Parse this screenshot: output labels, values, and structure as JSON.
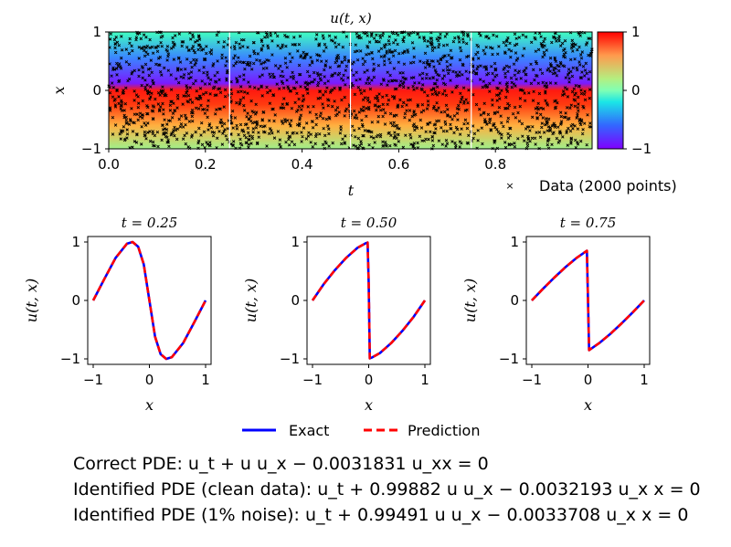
{
  "chart_data": [
    {
      "type": "heatmap",
      "title": "u(t, x)",
      "xlabel": "t",
      "ylabel": "x",
      "xlim": [
        0.0,
        1.0
      ],
      "ylim": [
        -1,
        1
      ],
      "xticks": [
        "0.0",
        "0.2",
        "0.4",
        "0.6",
        "0.8"
      ],
      "yticks": [
        "1",
        "0",
        "−1"
      ],
      "colorbar": {
        "ticks": [
          "1",
          "0",
          "−1"
        ],
        "range": [
          -1,
          1
        ],
        "colormap": "rainbow"
      },
      "slice_lines_t": [
        0.25,
        0.5,
        0.75
      ],
      "scatter_legend": "Data (2000 points)",
      "scatter_count": 2000
    },
    {
      "type": "line",
      "title": "t = 0.25",
      "xlabel": "x",
      "ylabel": "u(t, x)",
      "xlim": [
        -1,
        1
      ],
      "ylim": [
        -1,
        1
      ],
      "xticks": [
        "−1",
        "0",
        "1"
      ],
      "yticks": [
        "1",
        "0",
        "−1"
      ],
      "series": [
        {
          "name": "Exact",
          "x": [
            -1,
            -0.8,
            -0.6,
            -0.4,
            -0.3,
            -0.2,
            -0.1,
            0,
            0.1,
            0.2,
            0.3,
            0.4,
            0.6,
            0.8,
            1
          ],
          "y": [
            0,
            0.37,
            0.73,
            0.97,
            1.0,
            0.92,
            0.62,
            0.0,
            -0.62,
            -0.92,
            -1.0,
            -0.97,
            -0.73,
            -0.37,
            0
          ]
        },
        {
          "name": "Prediction",
          "x": [
            -1,
            -0.8,
            -0.6,
            -0.4,
            -0.3,
            -0.2,
            -0.1,
            0,
            0.1,
            0.2,
            0.3,
            0.4,
            0.6,
            0.8,
            1
          ],
          "y": [
            0,
            0.37,
            0.73,
            0.97,
            1.0,
            0.92,
            0.62,
            0.0,
            -0.62,
            -0.92,
            -1.0,
            -0.97,
            -0.73,
            -0.37,
            0
          ]
        }
      ]
    },
    {
      "type": "line",
      "title": "t = 0.50",
      "xlabel": "x",
      "ylabel": "u(t, x)",
      "xlim": [
        -1,
        1
      ],
      "ylim": [
        -1,
        1
      ],
      "xticks": [
        "−1",
        "0",
        "1"
      ],
      "yticks": [
        "1",
        "0",
        "−1"
      ],
      "series": [
        {
          "name": "Exact",
          "x": [
            -1,
            -0.8,
            -0.6,
            -0.4,
            -0.2,
            -0.05,
            -0.02,
            0.0,
            0.02,
            0.05,
            0.2,
            0.4,
            0.6,
            0.8,
            1
          ],
          "y": [
            0,
            0.28,
            0.52,
            0.73,
            0.9,
            0.98,
            0.99,
            0.3,
            -0.99,
            -0.98,
            -0.9,
            -0.73,
            -0.52,
            -0.28,
            0
          ]
        },
        {
          "name": "Prediction",
          "x": [
            -1,
            -0.8,
            -0.6,
            -0.4,
            -0.2,
            -0.05,
            -0.02,
            0.0,
            0.02,
            0.05,
            0.2,
            0.4,
            0.6,
            0.8,
            1
          ],
          "y": [
            0,
            0.28,
            0.52,
            0.73,
            0.9,
            0.98,
            0.99,
            0.3,
            -0.99,
            -0.98,
            -0.9,
            -0.73,
            -0.52,
            -0.28,
            0
          ]
        }
      ]
    },
    {
      "type": "line",
      "title": "t = 0.75",
      "xlabel": "x",
      "ylabel": "u(t, x)",
      "xlim": [
        -1,
        1
      ],
      "ylim": [
        -1,
        1
      ],
      "xticks": [
        "−1",
        "0",
        "1"
      ],
      "yticks": [
        "1",
        "0",
        "−1"
      ],
      "series": [
        {
          "name": "Exact",
          "x": [
            -1,
            -0.8,
            -0.6,
            -0.4,
            -0.2,
            -0.02,
            0.0,
            0.02,
            0.2,
            0.4,
            0.6,
            0.8,
            1
          ],
          "y": [
            0,
            0.2,
            0.39,
            0.57,
            0.73,
            0.85,
            0.0,
            -0.85,
            -0.73,
            -0.57,
            -0.39,
            -0.2,
            0
          ]
        },
        {
          "name": "Prediction",
          "x": [
            -1,
            -0.8,
            -0.6,
            -0.4,
            -0.2,
            -0.02,
            0.0,
            0.02,
            0.2,
            0.4,
            0.6,
            0.8,
            1
          ],
          "y": [
            0,
            0.2,
            0.39,
            0.57,
            0.73,
            0.85,
            0.0,
            -0.85,
            -0.73,
            -0.57,
            -0.39,
            -0.2,
            0
          ]
        }
      ]
    }
  ],
  "legend": {
    "exact": "Exact",
    "prediction": "Prediction",
    "exact_color": "#0000ff",
    "prediction_color": "#ff0000"
  },
  "equations": {
    "correct": "Correct PDE: u_t + u u_x − 0.0031831 u_xx = 0",
    "clean": "Identified PDE (clean data): u_t + 0.99882 u u_x − 0.0032193 u_x x = 0",
    "noise": "Identified PDE (1% noise): u_t + 0.99491 u u_x − 0.0033708 u_x x = 0"
  }
}
